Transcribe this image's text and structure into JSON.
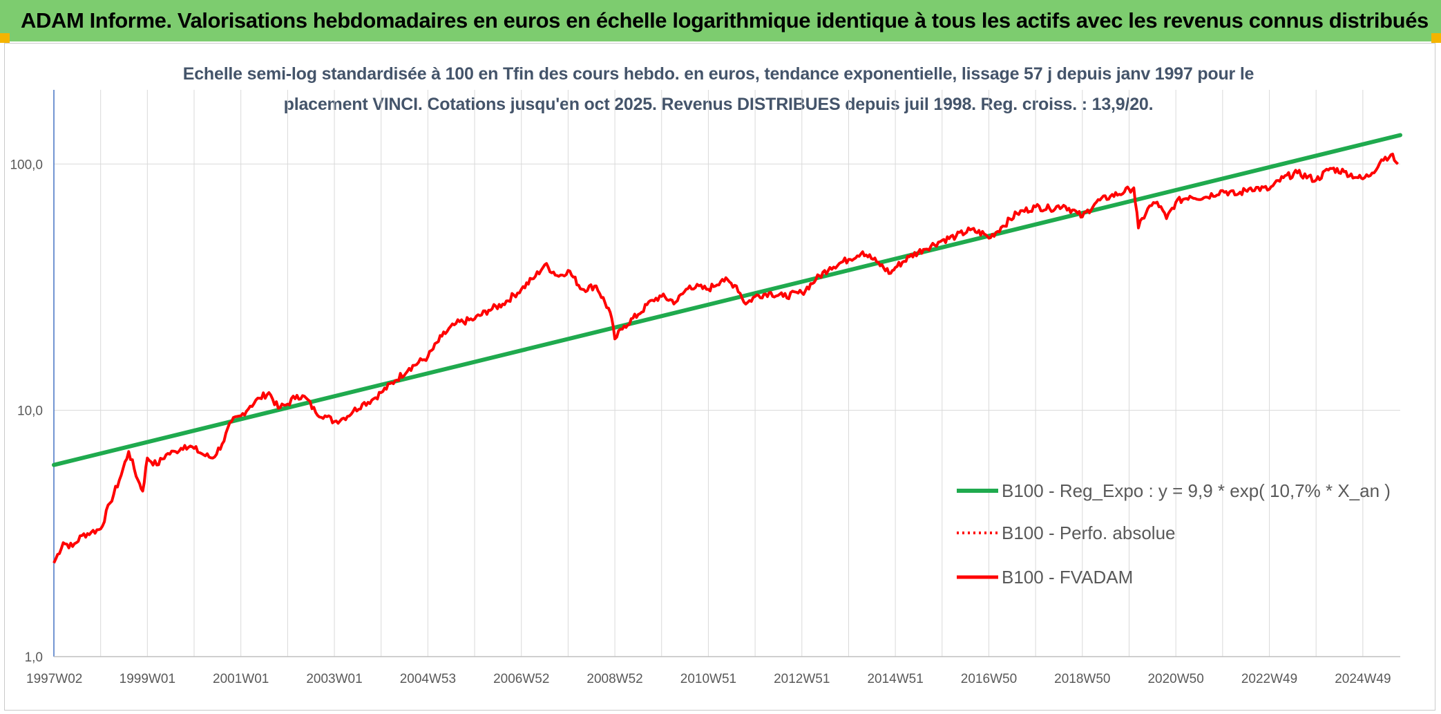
{
  "header": {
    "title": "ADAM Informe. Valorisations hebdomadaires en euros en échelle logarithmique identique à tous les actifs avec les revenus connus distribués"
  },
  "colors": {
    "header_band": "#7dcc6f",
    "corner_marks": "#f5b400",
    "regression": "#1faa4e",
    "fvadam": "#ff0000",
    "perfo": "#ff0000",
    "grid": "#d9d9d9",
    "subtitle": "#44546a"
  },
  "chart_data": {
    "type": "line",
    "title": "Echelle semi-log standardisée à 100 en Tfin des cours hebdo. en euros, tendance exponentielle, lissage 57 j depuis janv 1997 pour le placement VINCI. Cotations jusqu'en oct 2025. Revenus DISTRIBUES depuis juil 1998. Reg. croiss. : 13,9/20.",
    "title_lines": [
      "Echelle semi-log standardisée à 100 en Tfin des cours hebdo. en euros, tendance exponentielle, lissage 57 j depuis janv 1997 pour le",
      "placement VINCI. Cotations jusqu'en oct 2025. Revenus DISTRIBUES depuis juil 1998. Reg. croiss. : 13,9/20."
    ],
    "y_scale": "log",
    "ylim": [
      1,
      200
    ],
    "xlim": [
      1997.0,
      2025.8
    ],
    "grid": true,
    "y_ticks": [
      {
        "value": 1,
        "label": "1,0"
      },
      {
        "value": 10,
        "label": "10,0"
      },
      {
        "value": 100,
        "label": "100,0"
      }
    ],
    "x_ticks": [
      {
        "value": 1997.0,
        "label": "1997W02"
      },
      {
        "value": 1999.0,
        "label": "1999W01"
      },
      {
        "value": 2001.0,
        "label": "2001W01"
      },
      {
        "value": 2003.0,
        "label": "2003W01"
      },
      {
        "value": 2005.0,
        "label": "2004W53"
      },
      {
        "value": 2007.0,
        "label": "2006W52"
      },
      {
        "value": 2009.0,
        "label": "2008W52"
      },
      {
        "value": 2011.0,
        "label": "2010W51"
      },
      {
        "value": 2013.0,
        "label": "2012W51"
      },
      {
        "value": 2015.0,
        "label": "2014W51"
      },
      {
        "value": 2017.0,
        "label": "2016W50"
      },
      {
        "value": 2019.0,
        "label": "2018W50"
      },
      {
        "value": 2021.0,
        "label": "2020W50"
      },
      {
        "value": 2023.0,
        "label": "2022W49"
      },
      {
        "value": 2025.0,
        "label": "2024W49"
      }
    ],
    "legend_position": "bottom-right",
    "series": [
      {
        "name": "B100 - Reg_Expo : y = 9,9 * exp( 10,7% *  X_an )",
        "style": "solid-thick",
        "x": [
          1997.0,
          2025.8
        ],
        "y": [
          6.0,
          131.0
        ]
      },
      {
        "name": "B100 - Perfo. absolue",
        "style": "dotted",
        "x": [],
        "y": []
      },
      {
        "name": "B100 - FVADAM",
        "style": "solid",
        "x": [
          1997.0,
          1997.2,
          1997.4,
          1997.6,
          1997.8,
          1998.0,
          1998.2,
          1998.4,
          1998.6,
          1998.8,
          1998.9,
          1999.0,
          1999.2,
          1999.4,
          1999.6,
          1999.8,
          2000.0,
          2000.2,
          2000.4,
          2000.6,
          2000.8,
          2001.0,
          2001.2,
          2001.4,
          2001.6,
          2001.8,
          2002.0,
          2002.2,
          2002.4,
          2002.6,
          2002.8,
          2003.0,
          2003.2,
          2003.4,
          2003.6,
          2003.8,
          2004.0,
          2004.3,
          2004.6,
          2005.0,
          2005.3,
          2005.6,
          2006.0,
          2006.3,
          2006.6,
          2007.0,
          2007.3,
          2007.5,
          2007.8,
          2008.0,
          2008.3,
          2008.6,
          2008.9,
          2009.0,
          2009.2,
          2009.5,
          2009.8,
          2010.0,
          2010.3,
          2010.6,
          2011.0,
          2011.3,
          2011.6,
          2011.8,
          2012.0,
          2012.3,
          2012.6,
          2013.0,
          2013.3,
          2013.6,
          2014.0,
          2014.3,
          2014.6,
          2014.9,
          2015.0,
          2015.3,
          2015.6,
          2016.0,
          2016.3,
          2016.6,
          2016.9,
          2017.0,
          2017.3,
          2017.6,
          2018.0,
          2018.3,
          2018.6,
          2018.9,
          2019.0,
          2019.3,
          2019.6,
          2019.9,
          2020.0,
          2020.1,
          2020.2,
          2020.4,
          2020.6,
          2020.8,
          2021.0,
          2021.3,
          2021.6,
          2022.0,
          2022.3,
          2022.6,
          2023.0,
          2023.3,
          2023.6,
          2024.0,
          2024.3,
          2024.6,
          2024.9,
          2025.0,
          2025.2,
          2025.4,
          2025.6,
          2025.75
        ],
        "y": [
          2.4,
          2.9,
          2.8,
          3.1,
          3.2,
          3.3,
          4.2,
          5.2,
          6.8,
          5.2,
          4.7,
          6.4,
          6.0,
          6.6,
          6.8,
          7.2,
          7.0,
          6.6,
          6.4,
          7.3,
          9.0,
          9.5,
          10.4,
          11.2,
          11.8,
          10.2,
          10.6,
          11.5,
          11.2,
          9.8,
          9.5,
          9.0,
          9.3,
          9.9,
          10.6,
          11.0,
          11.8,
          13.2,
          14.8,
          16.5,
          20.0,
          22.5,
          23.5,
          25.5,
          27.0,
          31.0,
          35.0,
          39.0,
          35.0,
          37.0,
          31.0,
          32.0,
          25.0,
          19.5,
          22.0,
          24.5,
          28.0,
          29.0,
          27.5,
          32.0,
          31.0,
          34.0,
          32.0,
          27.0,
          29.0,
          30.0,
          29.0,
          30.0,
          34.0,
          38.0,
          41.0,
          44.0,
          40.0,
          36.0,
          38.0,
          42.0,
          45.0,
          49.0,
          51.0,
          54.0,
          52.0,
          50.0,
          56.0,
          63.0,
          67.0,
          66.0,
          68.0,
          63.0,
          61.0,
          70.0,
          74.0,
          77.0,
          79.0,
          80.0,
          55.0,
          66.0,
          70.0,
          60.0,
          70.0,
          74.0,
          73.0,
          78.0,
          75.0,
          80.0,
          79.0,
          88.0,
          92.0,
          86.0,
          96.0,
          93.0,
          88.0,
          87.0,
          92.0,
          104.0,
          109.0,
          100.0
        ]
      }
    ]
  }
}
